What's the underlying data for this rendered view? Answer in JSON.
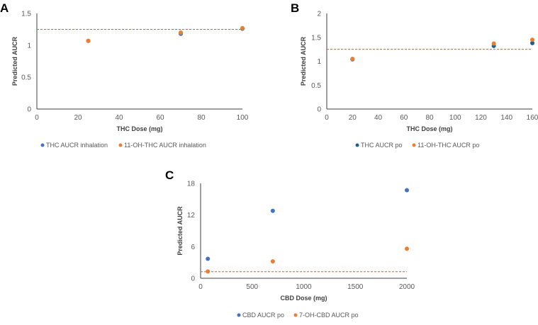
{
  "chart_data": [
    {
      "panel_label": "A",
      "type": "scatter",
      "xlabel": "THC Dose (mg)",
      "ylabel": "Predicted AUCR",
      "xlim": [
        0,
        100
      ],
      "ylim": [
        0,
        1.5
      ],
      "xticks": [
        0,
        20,
        40,
        60,
        80,
        100
      ],
      "yticks": [
        0,
        0.5,
        1,
        1.5
      ],
      "ytick_labels": [
        "0",
        "0.5",
        "1",
        "1.5"
      ],
      "grid": false,
      "legend_position": "bottom",
      "threshold": 1.25,
      "threshold_color": "#E0504A",
      "series": [
        {
          "name": "THC AUCR inhalation",
          "color": "#4472C4",
          "x": [
            25,
            70,
            100
          ],
          "y": [
            1.07,
            1.18,
            1.26
          ]
        },
        {
          "name": "11-OH-THC AUCR inhalation",
          "color": "#ED7D31",
          "x": [
            25,
            70,
            100
          ],
          "y": [
            1.07,
            1.2,
            1.27
          ]
        }
      ]
    },
    {
      "panel_label": "B",
      "type": "scatter",
      "xlabel": "THC Dose (mg)",
      "ylabel": "Predicted AUCR",
      "xlim": [
        0,
        160
      ],
      "ylim": [
        0,
        2
      ],
      "xticks": [
        0,
        20,
        40,
        60,
        80,
        100,
        120,
        140,
        160
      ],
      "yticks": [
        0,
        0.5,
        1,
        1.5,
        2
      ],
      "ytick_labels": [
        "0",
        "0.5",
        "1",
        "1.5",
        "2"
      ],
      "grid": false,
      "legend_position": "bottom",
      "threshold": 1.25,
      "threshold_color": "#E0504A",
      "series": [
        {
          "name": "THC AUCR po",
          "color": "#1F5F8B",
          "x": [
            20,
            130,
            160
          ],
          "y": [
            1.04,
            1.32,
            1.38
          ]
        },
        {
          "name": "11-OH-THC AUCR po",
          "color": "#ED7D31",
          "x": [
            20,
            130,
            160
          ],
          "y": [
            1.05,
            1.37,
            1.45
          ]
        }
      ]
    },
    {
      "panel_label": "C",
      "type": "scatter",
      "xlabel": "CBD Dose (mg)",
      "ylabel": "Predicted AUCR",
      "xlim": [
        0,
        2000
      ],
      "ylim": [
        0,
        18
      ],
      "xticks": [
        0,
        500,
        1000,
        1500,
        2000
      ],
      "yticks": [
        0,
        6,
        12,
        18
      ],
      "ytick_labels": [
        "0",
        "6",
        "12",
        "18"
      ],
      "grid": false,
      "legend_position": "bottom",
      "threshold": 1.25,
      "threshold_color": "#E0504A",
      "series": [
        {
          "name": "CBD AUCR po",
          "color": "#4472C4",
          "x": [
            70,
            700,
            2000
          ],
          "y": [
            3.7,
            12.8,
            16.7
          ]
        },
        {
          "name": "7-OH-CBD AUCR po",
          "color": "#ED7D31",
          "x": [
            70,
            700,
            2000
          ],
          "y": [
            1.3,
            3.2,
            5.6
          ]
        }
      ]
    }
  ]
}
